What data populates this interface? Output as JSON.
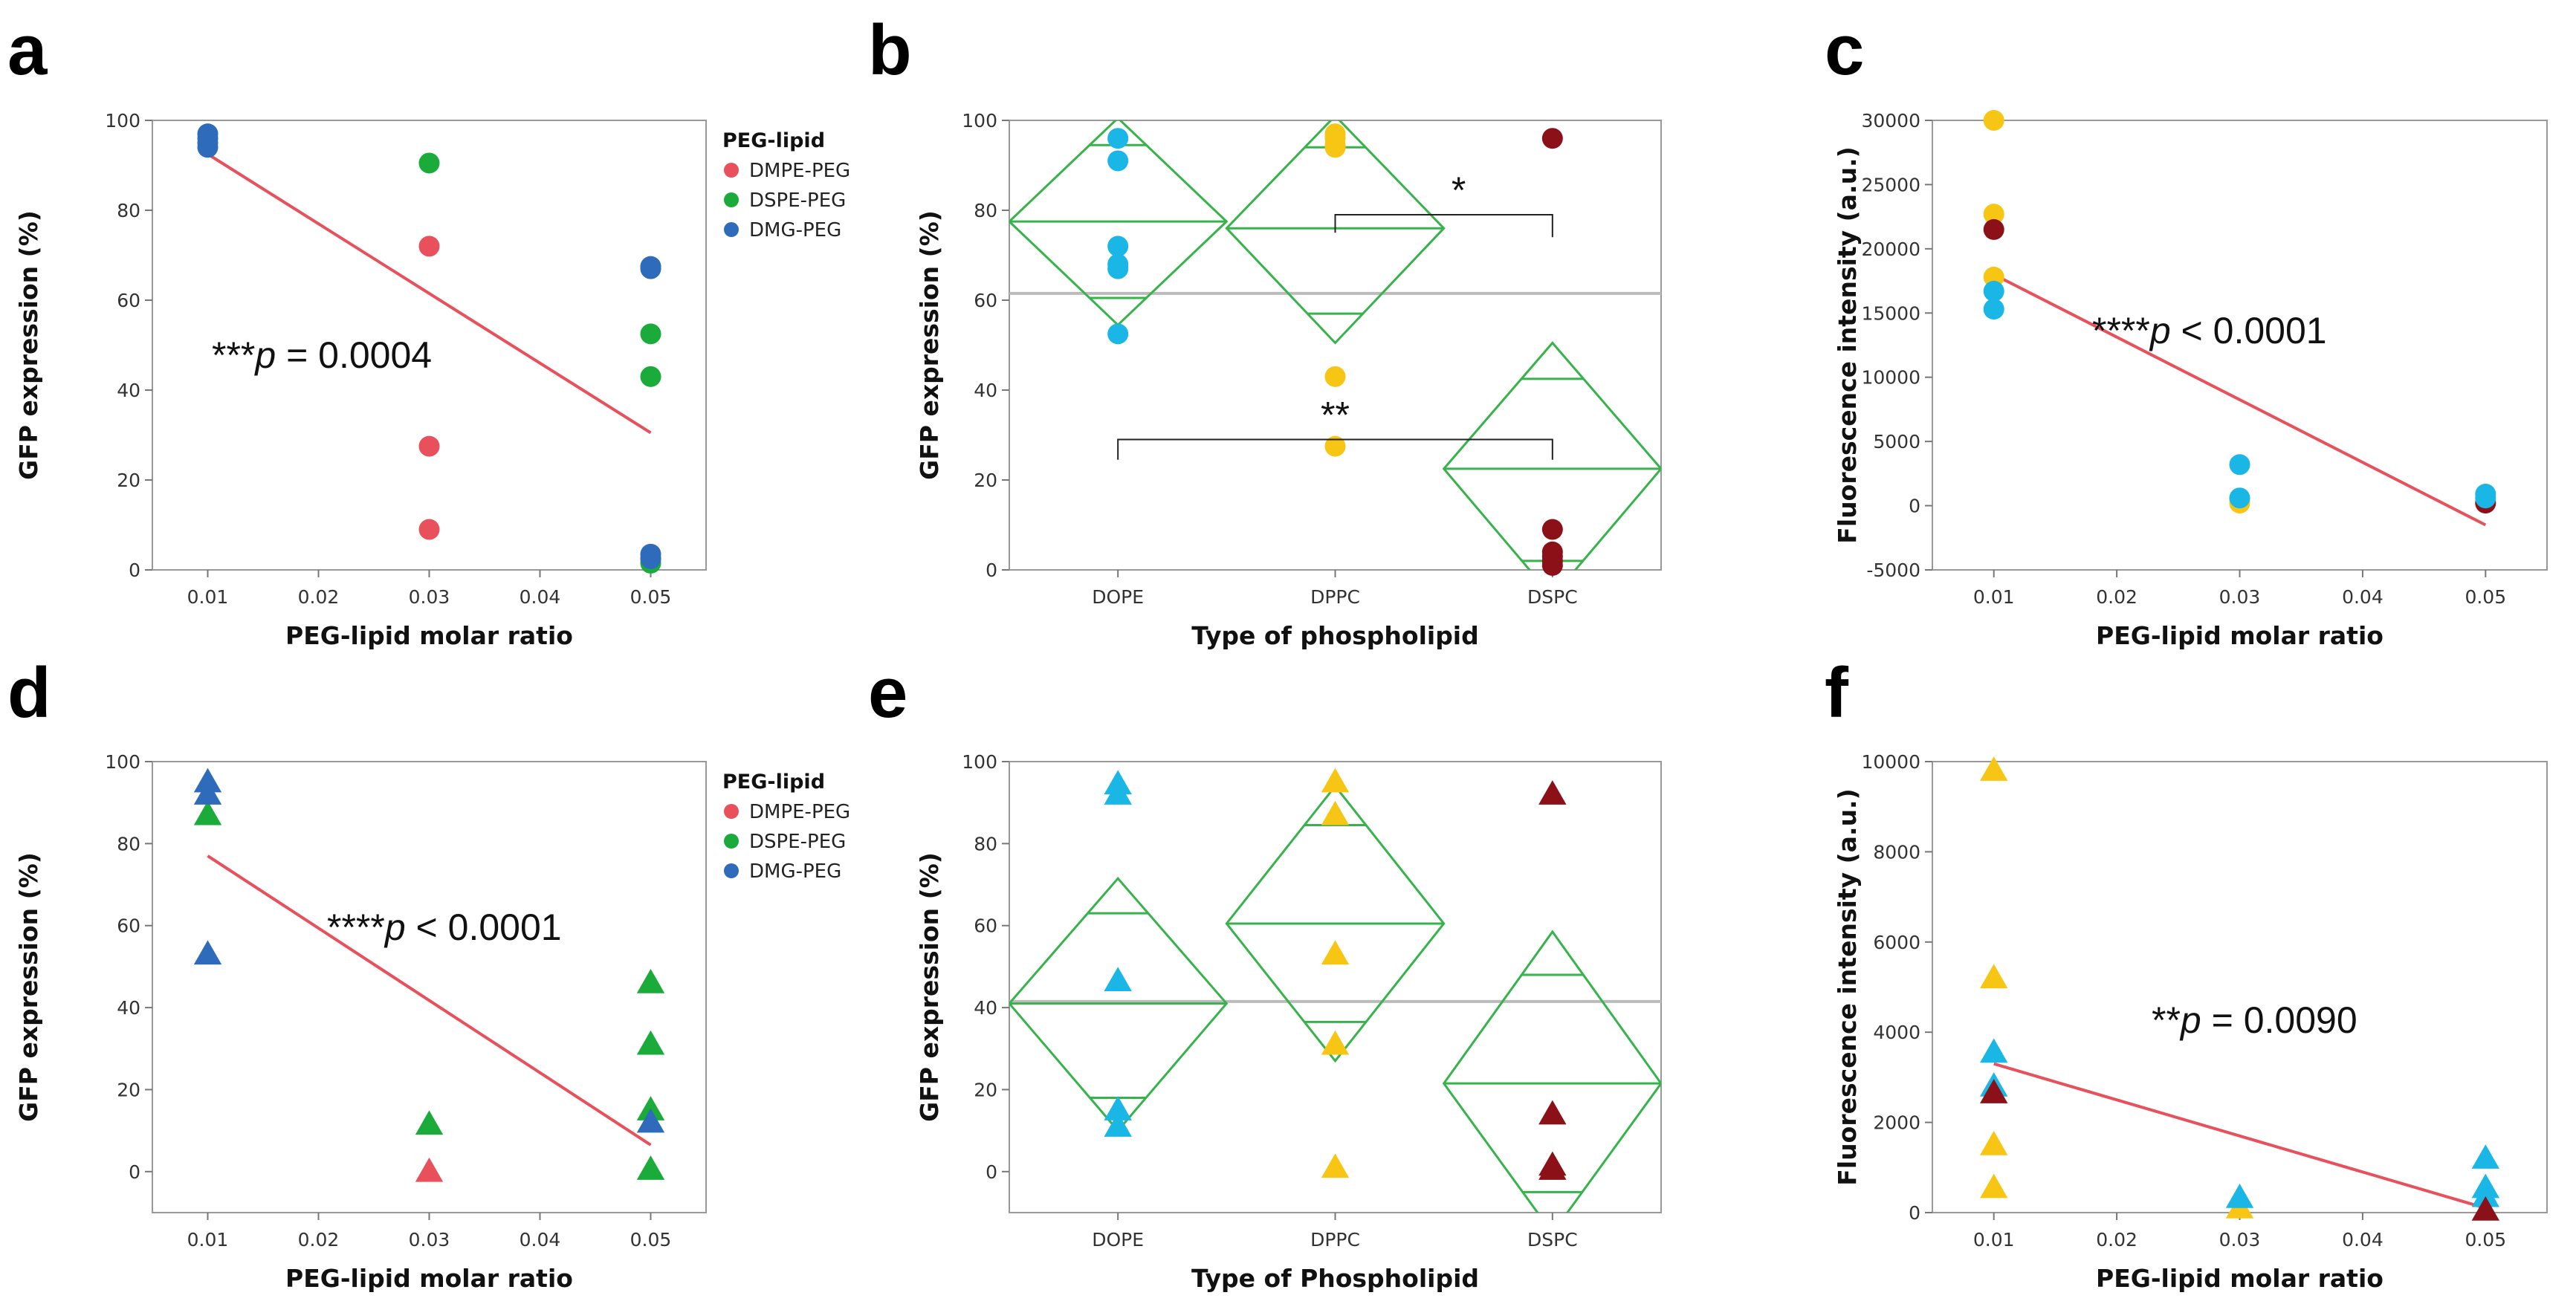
{
  "colors": {
    "DMPE-PEG": "#e8505b",
    "DSPE-PEG": "#1aab3a",
    "DMG-PEG": "#2e6bba",
    "DOPE": "#1ab6e6",
    "DPPC": "#f7c614",
    "DSPC": "#8b1018",
    "fit": "#e8505b",
    "diamond": "#36b34a",
    "grand_mean": "#bbbbbb"
  },
  "chart_data": [
    {
      "panel": "a",
      "type": "scatter",
      "marker": "circle",
      "xlabel": "PEG-lipid molar ratio",
      "ylabel": "GFP expression (%)",
      "xlim": [
        0.005,
        0.055
      ],
      "ylim": [
        0,
        100
      ],
      "xticks": [
        "0.01",
        "0.02",
        "0.03",
        "0.04",
        "0.05"
      ],
      "yticks": [
        "0",
        "20",
        "40",
        "60",
        "80",
        "100"
      ],
      "grid": false,
      "legend_title": "PEG-lipid",
      "legend_position": "right",
      "series": [
        {
          "name": "DMPE-PEG",
          "x": [
            0.03,
            0.03,
            0.03
          ],
          "y": [
            72,
            27.5,
            9
          ]
        },
        {
          "name": "DSPE-PEG",
          "x": [
            0.03,
            0.05,
            0.05,
            0.05,
            0.05
          ],
          "y": [
            90.5,
            52.5,
            43,
            2.5,
            1.5
          ]
        },
        {
          "name": "DMG-PEG",
          "x": [
            0.01,
            0.01,
            0.01,
            0.01,
            0.05,
            0.05,
            0.05,
            0.05
          ],
          "y": [
            97,
            96,
            95,
            94,
            67.5,
            67,
            3.5,
            2.5
          ]
        }
      ],
      "fit": {
        "x": [
          0.01,
          0.05
        ],
        "y": [
          92.5,
          30.5
        ]
      },
      "annotation": {
        "stars": "***",
        "p": "p",
        "rest": " = 0.0004"
      }
    },
    {
      "panel": "b",
      "type": "scatter",
      "marker": "circle",
      "xlabel": "Type of phospholipid",
      "ylabel": "GFP expression (%)",
      "ylim": [
        0,
        100
      ],
      "categories": [
        "DOPE",
        "DPPC",
        "DSPC"
      ],
      "yticks": [
        "0",
        "20",
        "40",
        "60",
        "80",
        "100"
      ],
      "grid": false,
      "grand_mean": 61.5,
      "series": [
        {
          "name": "DOPE",
          "x": [
            "DOPE",
            "DOPE",
            "DOPE",
            "DOPE",
            "DOPE",
            "DOPE"
          ],
          "y": [
            96,
            91,
            72,
            68,
            67,
            52.5
          ]
        },
        {
          "name": "DPPC",
          "x": [
            "DPPC",
            "DPPC",
            "DPPC",
            "DPPC",
            "DPPC",
            "DPPC"
          ],
          "y": [
            97,
            96,
            94.5,
            94,
            43,
            27.5
          ]
        },
        {
          "name": "DSPC",
          "x": [
            "DSPC",
            "DSPC",
            "DSPC",
            "DSPC",
            "DSPC",
            "DSPC"
          ],
          "y": [
            96,
            9,
            4,
            3,
            2,
            1
          ]
        }
      ],
      "diamonds": [
        {
          "category": "DOPE",
          "mean": 77.5,
          "lo": 54.5,
          "hi": 100.5,
          "inner_lo": 60.5,
          "inner_hi": 94.5
        },
        {
          "category": "DPPC",
          "mean": 76,
          "lo": 50.5,
          "hi": 101,
          "inner_lo": 57,
          "inner_hi": 94
        },
        {
          "category": "DSPC",
          "mean": 22.5,
          "lo": -6,
          "hi": 50.5,
          "inner_lo": 2,
          "inner_hi": 42.5
        }
      ],
      "significance": [
        {
          "label": "*",
          "from": "DPPC",
          "to": "DSPC",
          "y": 79,
          "drop_left": 75,
          "drop_right": 74
        },
        {
          "label": "**",
          "from": "DOPE",
          "to": "DSPC",
          "y": 29,
          "drop_left": 24.5,
          "drop_right": 24.5
        }
      ]
    },
    {
      "panel": "c",
      "type": "scatter",
      "marker": "circle",
      "xlabel": "PEG-lipid molar ratio",
      "ylabel": "Fluorescence intensity (a.u.)",
      "xlim": [
        0.005,
        0.055
      ],
      "ylim": [
        -5000,
        30000
      ],
      "xticks": [
        "0.01",
        "0.02",
        "0.03",
        "0.04",
        "0.05"
      ],
      "yticks": [
        "-5000",
        "0",
        "5000",
        "10000",
        "15000",
        "20000",
        "25000",
        "30000"
      ],
      "grid": false,
      "series": [
        {
          "name": "DPPC",
          "x": [
            0.01,
            0.01,
            0.01,
            0.03,
            0.03,
            0.05
          ],
          "y": [
            30000,
            22700,
            17800,
            500,
            200,
            300
          ]
        },
        {
          "name": "DSPC",
          "x": [
            0.01,
            0.05
          ],
          "y": [
            21500,
            200
          ]
        },
        {
          "name": "DOPE",
          "x": [
            0.01,
            0.01,
            0.03,
            0.03,
            0.05,
            0.05
          ],
          "y": [
            16700,
            15300,
            3200,
            600,
            900,
            600
          ]
        }
      ],
      "fit": {
        "x": [
          0.01,
          0.05
        ],
        "y": [
          18000,
          -1500
        ]
      },
      "annotation": {
        "stars": "****",
        "p": "p",
        "rest": " < 0.0001"
      }
    },
    {
      "panel": "d",
      "type": "scatter",
      "marker": "triangle",
      "xlabel": "PEG-lipid molar ratio",
      "ylabel": "GFP expression (%)",
      "xlim": [
        0.005,
        0.055
      ],
      "ylim": [
        -10,
        100
      ],
      "xticks": [
        "0.01",
        "0.02",
        "0.03",
        "0.04",
        "0.05"
      ],
      "yticks": [
        "0",
        "20",
        "40",
        "60",
        "80",
        "100"
      ],
      "grid": false,
      "legend_title": "PEG-lipid",
      "legend_position": "right",
      "series": [
        {
          "name": "DMPE-PEG",
          "x": [
            0.03
          ],
          "y": [
            0
          ]
        },
        {
          "name": "DSPE-PEG",
          "x": [
            0.01,
            0.03,
            0.05,
            0.05,
            0.05,
            0.05
          ],
          "y": [
            87,
            11.5,
            46,
            31,
            15,
            0.5
          ]
        },
        {
          "name": "DMG-PEG",
          "x": [
            0.01,
            0.01,
            0.01,
            0.05
          ],
          "y": [
            95,
            92,
            53,
            12
          ]
        }
      ],
      "fit": {
        "x": [
          0.01,
          0.05
        ],
        "y": [
          77,
          6.5
        ]
      },
      "annotation": {
        "stars": "****",
        "p": "p",
        "rest": " < 0.0001"
      }
    },
    {
      "panel": "e",
      "type": "scatter",
      "marker": "triangle",
      "xlabel": "Type of Phospholipid",
      "ylabel": "GFP expression (%)",
      "ylim": [
        -10,
        100
      ],
      "categories": [
        "DOPE",
        "DPPC",
        "DSPC"
      ],
      "yticks": [
        "0",
        "20",
        "40",
        "60",
        "80",
        "100"
      ],
      "grid": false,
      "grand_mean": 41.5,
      "series": [
        {
          "name": "DOPE",
          "x": [
            "DOPE",
            "DOPE",
            "DOPE",
            "DOPE",
            "DOPE"
          ],
          "y": [
            94.5,
            92,
            46.5,
            15,
            11
          ]
        },
        {
          "name": "DPPC",
          "x": [
            "DPPC",
            "DPPC",
            "DPPC",
            "DPPC",
            "DPPC"
          ],
          "y": [
            95,
            87,
            53,
            31,
            1
          ]
        },
        {
          "name": "DSPC",
          "x": [
            "DSPC",
            "DSPC",
            "DSPC",
            "DSPC"
          ],
          "y": [
            92,
            14,
            1.5,
            0.5
          ]
        }
      ],
      "diamonds": [
        {
          "category": "DOPE",
          "mean": 41,
          "lo": 10,
          "hi": 71.5,
          "inner_lo": 18,
          "inner_hi": 63
        },
        {
          "category": "DPPC",
          "mean": 60.5,
          "lo": 27,
          "hi": 94,
          "inner_lo": 36.5,
          "inner_hi": 84.5
        },
        {
          "category": "DSPC",
          "mean": 21.5,
          "lo": -15,
          "hi": 58.5,
          "inner_lo": -5,
          "inner_hi": 48
        }
      ],
      "significance": []
    },
    {
      "panel": "f",
      "type": "scatter",
      "marker": "triangle",
      "xlabel": "PEG-lipid molar ratio",
      "ylabel": "Fluorescence intensity (a.u.)",
      "xlim": [
        0.005,
        0.055
      ],
      "ylim": [
        0,
        10000
      ],
      "xticks": [
        "0.01",
        "0.02",
        "0.03",
        "0.04",
        "0.05"
      ],
      "yticks": [
        "0",
        "2000",
        "4000",
        "6000",
        "8000",
        "10000"
      ],
      "grid": false,
      "series": [
        {
          "name": "DPPC",
          "x": [
            0.01,
            0.01,
            0.01,
            0.01,
            0.03
          ],
          "y": [
            9800,
            5200,
            1500,
            550,
            100
          ]
        },
        {
          "name": "DOPE",
          "x": [
            0.01,
            0.01,
            0.03,
            0.05,
            0.05,
            0.05
          ],
          "y": [
            3550,
            2800,
            330,
            1200,
            550,
            350
          ]
        },
        {
          "name": "DSPC",
          "x": [
            0.01,
            0.05
          ],
          "y": [
            2650,
            50
          ]
        }
      ],
      "fit": {
        "x": [
          0.01,
          0.05
        ],
        "y": [
          3300,
          100
        ]
      },
      "annotation": {
        "stars": "**",
        "p": "p",
        "rest": " = 0.0090"
      }
    }
  ]
}
